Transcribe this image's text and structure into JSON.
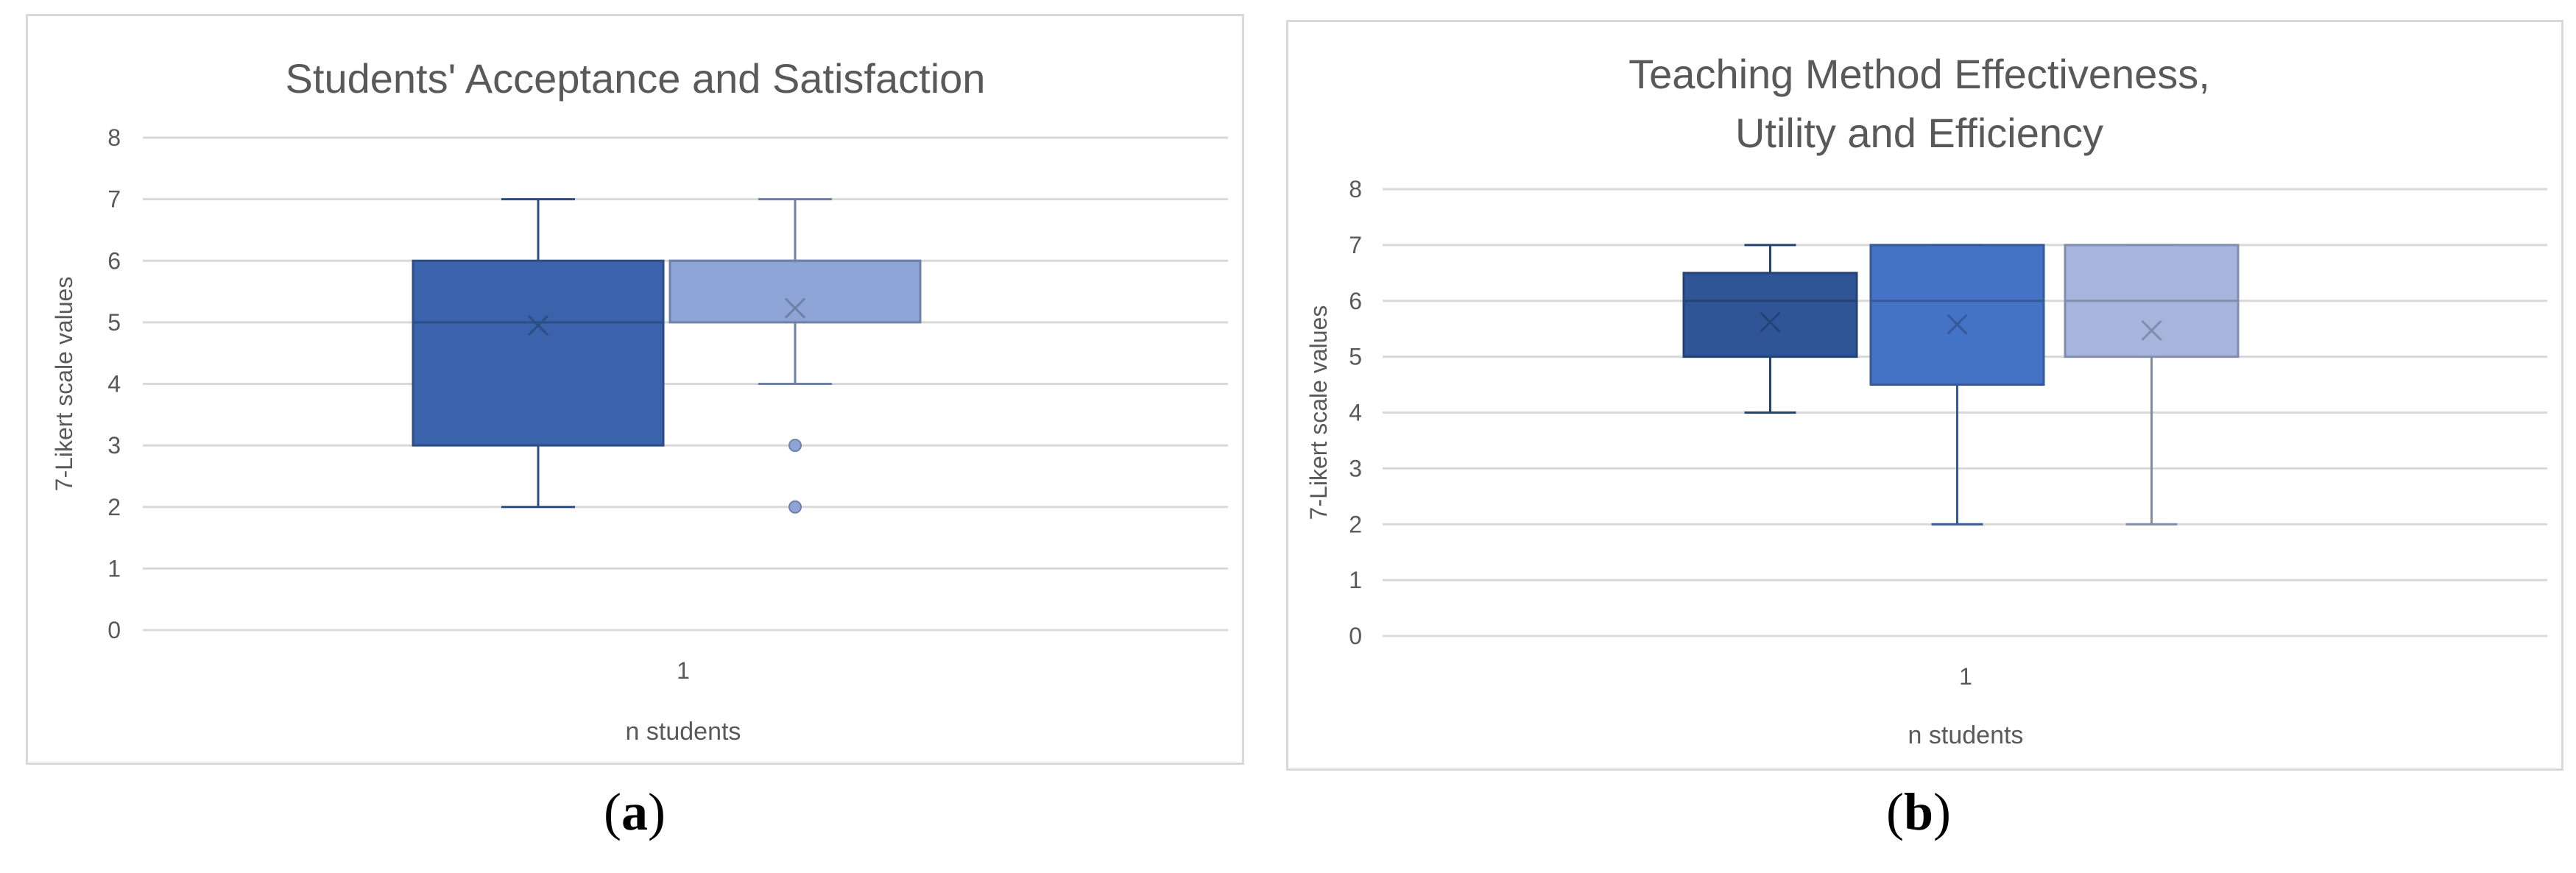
{
  "chart_data": [
    {
      "type": "boxplot",
      "panel_label": "a",
      "title": "Students' Acceptance and Satisfaction",
      "ylabel": "7-Likert scale values",
      "xlabel": "n     students",
      "categories": [
        "1"
      ],
      "ylim": [
        0,
        8
      ],
      "yticks": [
        0,
        1,
        2,
        3,
        4,
        5,
        6,
        7,
        8
      ],
      "grid": true,
      "series": [
        {
          "color": "#3a63ac",
          "whisker_low": 2,
          "q1": 3,
          "median": 5,
          "q3": 6,
          "whisker_high": 7,
          "mean": 4.95,
          "outliers": []
        },
        {
          "color": "#8ea4d6",
          "whisker_low": 4,
          "q1": 5,
          "median": 6,
          "q3": 6,
          "whisker_high": 7,
          "mean": 5.23,
          "outliers": [
            3,
            2
          ]
        }
      ]
    },
    {
      "type": "boxplot",
      "panel_label": "b",
      "title": "Teaching Method Effectiveness,\nUtility and Efficiency",
      "ylabel": "7-Likert scale values",
      "xlabel": "n   students",
      "categories": [
        "1"
      ],
      "ylim": [
        0,
        8
      ],
      "yticks": [
        0,
        1,
        2,
        3,
        4,
        5,
        6,
        7,
        8
      ],
      "grid": true,
      "series": [
        {
          "color": "#2f5597",
          "whisker_low": 4,
          "q1": 5,
          "median": 6,
          "q3": 6.5,
          "whisker_high": 7,
          "mean": 5.62,
          "outliers": []
        },
        {
          "color": "#4472c4",
          "whisker_low": 2,
          "q1": 4.5,
          "median": 6,
          "q3": 7,
          "whisker_high": 7,
          "mean": 5.58,
          "outliers": []
        },
        {
          "color": "#a6b5dc",
          "whisker_low": 2,
          "q1": 5,
          "median": 6,
          "q3": 7,
          "whisker_high": 7,
          "mean": 5.47,
          "outliers": []
        }
      ]
    }
  ]
}
